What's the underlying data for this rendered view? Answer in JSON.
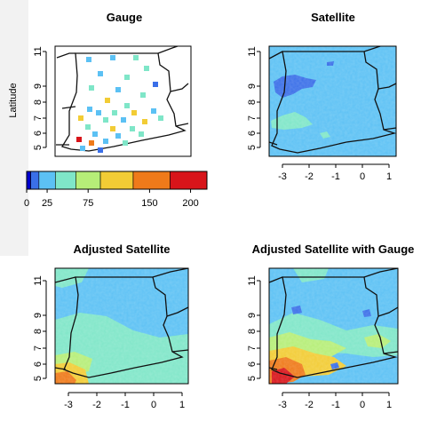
{
  "figure": {
    "panels": [
      {
        "id": "gauge",
        "title": "Gauge"
      },
      {
        "id": "satellite",
        "title": "Satellite"
      },
      {
        "id": "adjusted",
        "title": "Adjusted Satellite"
      },
      {
        "id": "adjusted_gauge",
        "title": "Adjusted Satellite with Gauge"
      }
    ],
    "ylabel": "Latitude",
    "lat_ticks": [
      "11",
      "9",
      "8",
      "7",
      "6",
      "5"
    ],
    "lon_ticks": [
      "-3",
      "-2",
      "-1",
      "0",
      "1"
    ],
    "colorbar": {
      "ticks": [
        "0",
        "25",
        "75",
        "150",
        "200"
      ],
      "tick_values": [
        0,
        25,
        75,
        150,
        200
      ],
      "bins": [
        {
          "from": 0,
          "to": 5,
          "color": "#0000cd"
        },
        {
          "from": 5,
          "to": 15,
          "color": "#3a6fe8"
        },
        {
          "from": 15,
          "to": 35,
          "color": "#5cc1f4"
        },
        {
          "from": 35,
          "to": 60,
          "color": "#7fe6c8"
        },
        {
          "from": 60,
          "to": 90,
          "color": "#b6ee78"
        },
        {
          "from": 90,
          "to": 130,
          "color": "#f2cc35"
        },
        {
          "from": 130,
          "to": 175,
          "color": "#ef7a1a"
        },
        {
          "from": 175,
          "to": 220,
          "color": "#d8141a"
        }
      ]
    },
    "colors": {
      "sky": "#5cc1f4",
      "deep_blue": "#3a6fe8",
      "mint": "#7fe6c8",
      "yellow": "#f2cc35",
      "orange": "#ef7a1a",
      "red": "#d8141a"
    }
  }
}
